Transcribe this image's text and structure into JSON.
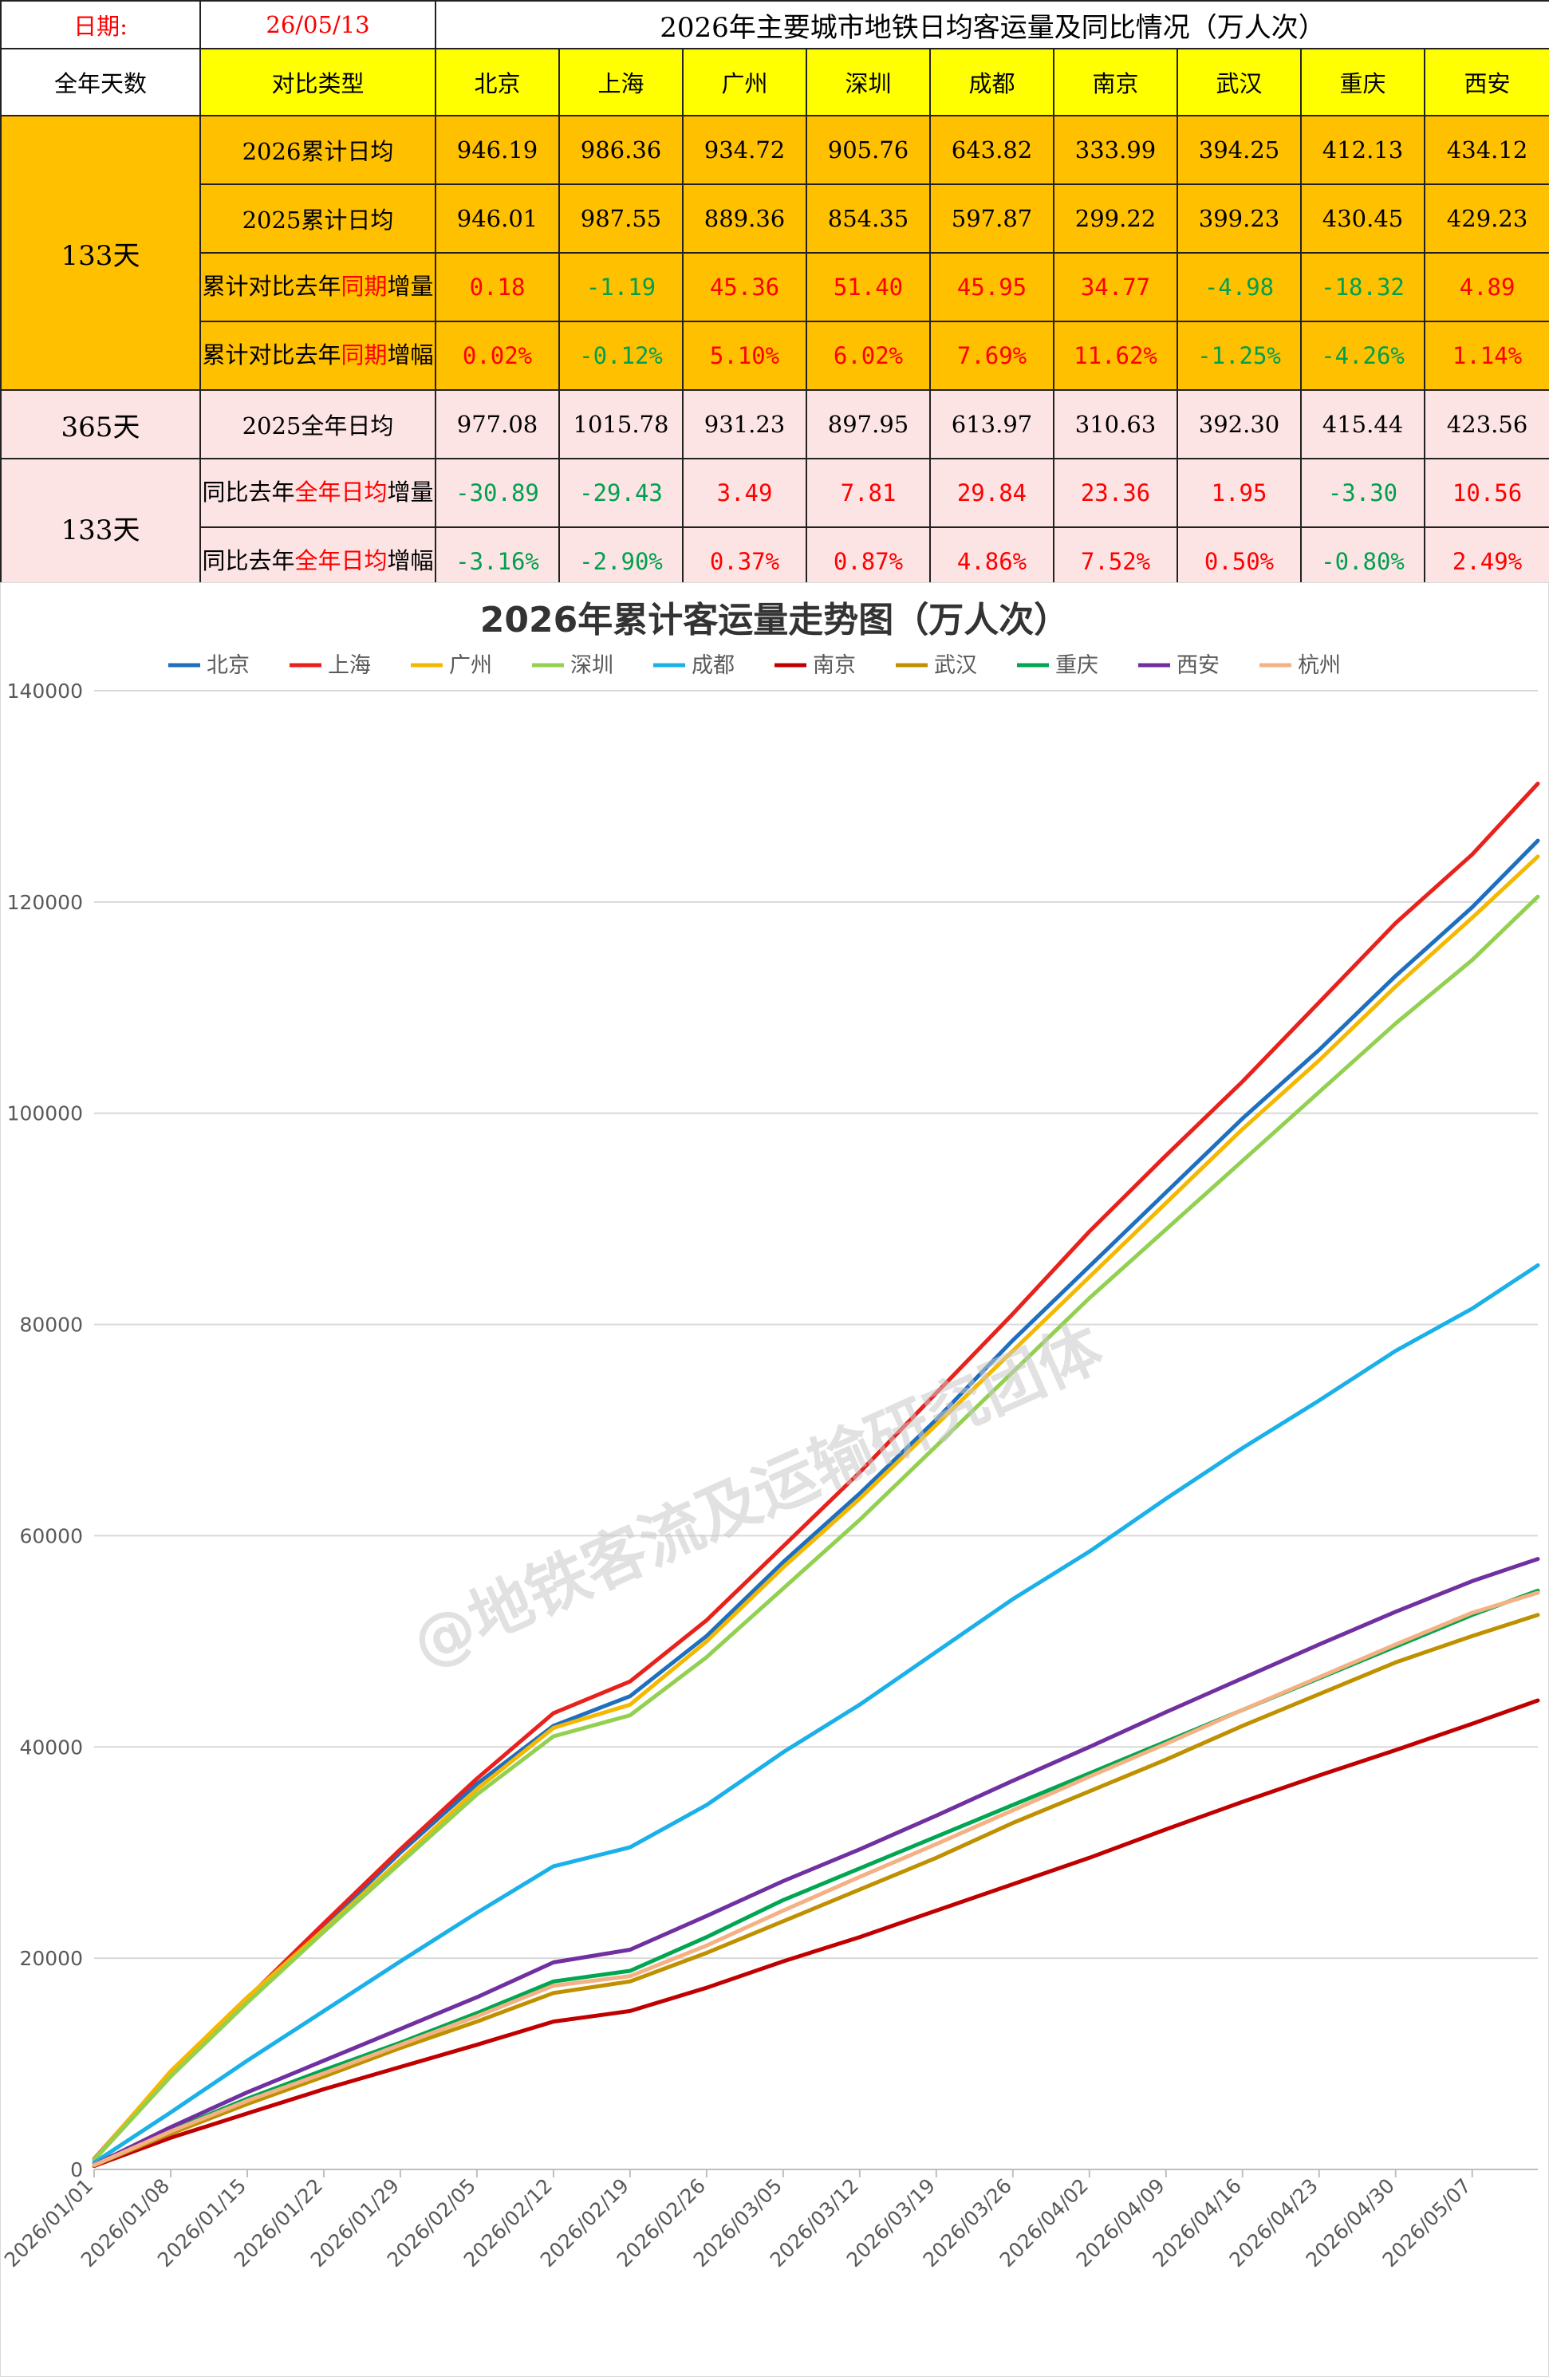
{
  "header": {
    "date_label": "日期:",
    "date_value": "26/05/13",
    "title": "2026年主要城市地铁日均客运量及同比情况（万人次）"
  },
  "columns": {
    "days_label": "全年天数",
    "type_label": "对比类型",
    "cities": [
      "北京",
      "上海",
      "广州",
      "深圳",
      "成都",
      "南京",
      "武汉",
      "重庆",
      "西安"
    ]
  },
  "rows": [
    {
      "days": "133天",
      "label_parts": [
        {
          "t": "2026累计日均",
          "c": "black"
        }
      ],
      "values": [
        "946.19",
        "986.36",
        "934.72",
        "905.76",
        "643.82",
        "333.99",
        "394.25",
        "412.13",
        "434.12"
      ],
      "colors": [
        "black",
        "black",
        "black",
        "black",
        "black",
        "black",
        "black",
        "black",
        "black"
      ]
    },
    {
      "days": "",
      "label_parts": [
        {
          "t": "2025累计日均",
          "c": "black"
        }
      ],
      "values": [
        "946.01",
        "987.55",
        "889.36",
        "854.35",
        "597.87",
        "299.22",
        "399.23",
        "430.45",
        "429.23"
      ],
      "colors": [
        "black",
        "black",
        "black",
        "black",
        "black",
        "black",
        "black",
        "black",
        "black"
      ]
    },
    {
      "days": "",
      "label_parts": [
        {
          "t": "累计对比去年",
          "c": "black"
        },
        {
          "t": "同期",
          "c": "red"
        },
        {
          "t": "增量",
          "c": "black"
        }
      ],
      "values": [
        "0.18",
        "-1.19",
        "45.36",
        "51.40",
        "45.95",
        "34.77",
        "-4.98",
        "-18.32",
        "4.89"
      ],
      "colors": [
        "red",
        "green",
        "red",
        "red",
        "red",
        "red",
        "green",
        "green",
        "red"
      ]
    },
    {
      "days": "",
      "label_parts": [
        {
          "t": "累计对比去年",
          "c": "black"
        },
        {
          "t": "同期",
          "c": "red"
        },
        {
          "t": "增幅",
          "c": "black"
        }
      ],
      "values": [
        "0.02%",
        "-0.12%",
        "5.10%",
        "6.02%",
        "7.69%",
        "11.62%",
        "-1.25%",
        "-4.26%",
        "1.14%"
      ],
      "colors": [
        "red",
        "green",
        "red",
        "red",
        "red",
        "red",
        "green",
        "green",
        "red"
      ]
    },
    {
      "days": "365天",
      "label_parts": [
        {
          "t": "2025全年日均",
          "c": "black"
        }
      ],
      "values": [
        "977.08",
        "1015.78",
        "931.23",
        "897.95",
        "613.97",
        "310.63",
        "392.30",
        "415.44",
        "423.56"
      ],
      "colors": [
        "black",
        "black",
        "black",
        "black",
        "black",
        "black",
        "black",
        "black",
        "black"
      ]
    },
    {
      "days": "133天",
      "label_parts": [
        {
          "t": "同比去年",
          "c": "black"
        },
        {
          "t": "全年日均",
          "c": "red"
        },
        {
          "t": "增量",
          "c": "black"
        }
      ],
      "values": [
        "-30.89",
        "-29.43",
        "3.49",
        "7.81",
        "29.84",
        "23.36",
        "1.95",
        "-3.30",
        "10.56"
      ],
      "colors": [
        "green",
        "green",
        "red",
        "red",
        "red",
        "red",
        "red",
        "green",
        "red"
      ]
    },
    {
      "days": "",
      "label_parts": [
        {
          "t": "同比去年",
          "c": "black"
        },
        {
          "t": "全年日均",
          "c": "red"
        },
        {
          "t": "增幅",
          "c": "black"
        }
      ],
      "values": [
        "-3.16%",
        "-2.90%",
        "0.37%",
        "0.87%",
        "4.86%",
        "7.52%",
        "0.50%",
        "-0.80%",
        "2.49%"
      ],
      "colors": [
        "green",
        "green",
        "red",
        "red",
        "red",
        "red",
        "red",
        "green",
        "red"
      ]
    }
  ],
  "colors": {
    "red_text": "#ff0000",
    "green_text": "#00a050",
    "yellow": "#ffff00",
    "orange": "#ffc000",
    "pink": "#fde4e4"
  },
  "watermark": "@地铁客流及运输研究团体",
  "chart_data": {
    "type": "line",
    "title": "2026年累计客运量走势图（万人次）",
    "xlabel": "",
    "ylabel": "",
    "ylim": [
      0,
      140000
    ],
    "yticks": [
      0,
      20000,
      40000,
      60000,
      80000,
      100000,
      120000,
      140000
    ],
    "x_tick_labels": [
      "2026/01/01",
      "2026/01/08",
      "2026/01/15",
      "2026/01/22",
      "2026/01/29",
      "2026/02/05",
      "2026/02/12",
      "2026/02/19",
      "2026/02/26",
      "2026/03/05",
      "2026/03/12",
      "2026/03/19",
      "2026/03/26",
      "2026/04/02",
      "2026/04/09",
      "2026/04/16",
      "2026/04/23",
      "2026/04/30",
      "2026/05/07"
    ],
    "x_range": [
      "2026/01/01",
      "2026/05/13"
    ],
    "grid": true,
    "legend": "top",
    "series": [
      {
        "name": "北京",
        "color": "#1f6fbf",
        "points": [
          [
            "2026/01/01",
            950
          ],
          [
            "2026/01/08",
            9000
          ],
          [
            "2026/01/15",
            16000
          ],
          [
            "2026/01/22",
            23000
          ],
          [
            "2026/01/29",
            30000
          ],
          [
            "2026/02/05",
            36500
          ],
          [
            "2026/02/12",
            42000
          ],
          [
            "2026/02/19",
            44800
          ],
          [
            "2026/02/26",
            50500
          ],
          [
            "2026/03/05",
            57500
          ],
          [
            "2026/03/12",
            64000
          ],
          [
            "2026/03/19",
            71000
          ],
          [
            "2026/03/26",
            78500
          ],
          [
            "2026/04/02",
            85500
          ],
          [
            "2026/04/09",
            92500
          ],
          [
            "2026/04/16",
            99500
          ],
          [
            "2026/04/23",
            106000
          ],
          [
            "2026/04/30",
            113000
          ],
          [
            "2026/05/07",
            119500
          ],
          [
            "2026/05/13",
            125800
          ]
        ]
      },
      {
        "name": "上海",
        "color": "#e8211c",
        "points": [
          [
            "2026/01/01",
            990
          ],
          [
            "2026/01/08",
            9200
          ],
          [
            "2026/01/15",
            16200
          ],
          [
            "2026/01/22",
            23300
          ],
          [
            "2026/01/29",
            30300
          ],
          [
            "2026/02/05",
            37000
          ],
          [
            "2026/02/12",
            43200
          ],
          [
            "2026/02/19",
            46200
          ],
          [
            "2026/02/26",
            52000
          ],
          [
            "2026/03/05",
            59000
          ],
          [
            "2026/03/12",
            66000
          ],
          [
            "2026/03/19",
            73500
          ],
          [
            "2026/03/26",
            81000
          ],
          [
            "2026/04/02",
            88800
          ],
          [
            "2026/04/09",
            96000
          ],
          [
            "2026/04/16",
            103000
          ],
          [
            "2026/04/23",
            110500
          ],
          [
            "2026/04/30",
            118000
          ],
          [
            "2026/05/07",
            124500
          ],
          [
            "2026/05/13",
            131200
          ]
        ]
      },
      {
        "name": "广州",
        "color": "#f5b800",
        "points": [
          [
            "2026/01/01",
            930
          ],
          [
            "2026/01/08",
            9300
          ],
          [
            "2026/01/15",
            16300
          ],
          [
            "2026/01/22",
            22700
          ],
          [
            "2026/01/29",
            29300
          ],
          [
            "2026/02/05",
            36000
          ],
          [
            "2026/02/12",
            41800
          ],
          [
            "2026/02/19",
            44000
          ],
          [
            "2026/02/26",
            50000
          ],
          [
            "2026/03/05",
            57000
          ],
          [
            "2026/03/12",
            63500
          ],
          [
            "2026/03/19",
            70500
          ],
          [
            "2026/03/26",
            77500
          ],
          [
            "2026/04/02",
            84500
          ],
          [
            "2026/04/09",
            91500
          ],
          [
            "2026/04/16",
            98500
          ],
          [
            "2026/04/23",
            105000
          ],
          [
            "2026/04/30",
            112000
          ],
          [
            "2026/05/07",
            118500
          ],
          [
            "2026/05/13",
            124300
          ]
        ]
      },
      {
        "name": "深圳",
        "color": "#92d050",
        "points": [
          [
            "2026/01/01",
            900
          ],
          [
            "2026/01/08",
            8800
          ],
          [
            "2026/01/15",
            15800
          ],
          [
            "2026/01/22",
            22500
          ],
          [
            "2026/01/29",
            29000
          ],
          [
            "2026/02/05",
            35500
          ],
          [
            "2026/02/12",
            41000
          ],
          [
            "2026/02/19",
            43000
          ],
          [
            "2026/02/26",
            48500
          ],
          [
            "2026/03/05",
            55000
          ],
          [
            "2026/03/12",
            61500
          ],
          [
            "2026/03/19",
            68500
          ],
          [
            "2026/03/26",
            75500
          ],
          [
            "2026/04/02",
            82500
          ],
          [
            "2026/04/09",
            89000
          ],
          [
            "2026/04/16",
            95500
          ],
          [
            "2026/04/23",
            102000
          ],
          [
            "2026/04/30",
            108500
          ],
          [
            "2026/05/07",
            114500
          ],
          [
            "2026/05/13",
            120500
          ]
        ]
      },
      {
        "name": "成都",
        "color": "#1ab0e8",
        "points": [
          [
            "2026/01/01",
            640
          ],
          [
            "2026/01/08",
            5400
          ],
          [
            "2026/01/15",
            10300
          ],
          [
            "2026/01/22",
            15000
          ],
          [
            "2026/01/29",
            19700
          ],
          [
            "2026/02/05",
            24300
          ],
          [
            "2026/02/12",
            28700
          ],
          [
            "2026/02/19",
            30500
          ],
          [
            "2026/02/26",
            34500
          ],
          [
            "2026/03/05",
            39500
          ],
          [
            "2026/03/12",
            44000
          ],
          [
            "2026/03/19",
            49000
          ],
          [
            "2026/03/26",
            54000
          ],
          [
            "2026/04/02",
            58500
          ],
          [
            "2026/04/09",
            63500
          ],
          [
            "2026/04/16",
            68300
          ],
          [
            "2026/04/23",
            72800
          ],
          [
            "2026/04/30",
            77500
          ],
          [
            "2026/05/07",
            81500
          ],
          [
            "2026/05/13",
            85600
          ]
        ]
      },
      {
        "name": "南京",
        "color": "#c00000",
        "points": [
          [
            "2026/01/01",
            330
          ],
          [
            "2026/01/08",
            3000
          ],
          [
            "2026/01/15",
            5300
          ],
          [
            "2026/01/22",
            7600
          ],
          [
            "2026/01/29",
            9700
          ],
          [
            "2026/02/05",
            11800
          ],
          [
            "2026/02/12",
            14000
          ],
          [
            "2026/02/19",
            15000
          ],
          [
            "2026/02/26",
            17200
          ],
          [
            "2026/03/05",
            19700
          ],
          [
            "2026/03/12",
            22000
          ],
          [
            "2026/03/19",
            24500
          ],
          [
            "2026/03/26",
            27000
          ],
          [
            "2026/04/02",
            29500
          ],
          [
            "2026/04/09",
            32200
          ],
          [
            "2026/04/16",
            34800
          ],
          [
            "2026/04/23",
            37300
          ],
          [
            "2026/04/30",
            39700
          ],
          [
            "2026/05/07",
            42200
          ],
          [
            "2026/05/13",
            44400
          ]
        ]
      },
      {
        "name": "武汉",
        "color": "#bf9000",
        "points": [
          [
            "2026/01/01",
            390
          ],
          [
            "2026/01/08",
            3400
          ],
          [
            "2026/01/15",
            6200
          ],
          [
            "2026/01/22",
            8800
          ],
          [
            "2026/01/29",
            11500
          ],
          [
            "2026/02/05",
            14000
          ],
          [
            "2026/02/12",
            16700
          ],
          [
            "2026/02/19",
            17800
          ],
          [
            "2026/02/26",
            20500
          ],
          [
            "2026/03/05",
            23500
          ],
          [
            "2026/03/12",
            26500
          ],
          [
            "2026/03/19",
            29500
          ],
          [
            "2026/03/26",
            32800
          ],
          [
            "2026/04/02",
            35800
          ],
          [
            "2026/04/09",
            38800
          ],
          [
            "2026/04/16",
            42000
          ],
          [
            "2026/04/23",
            45000
          ],
          [
            "2026/04/30",
            48000
          ],
          [
            "2026/05/07",
            50500
          ],
          [
            "2026/05/13",
            52500
          ]
        ]
      },
      {
        "name": "重庆",
        "color": "#00a651",
        "points": [
          [
            "2026/01/01",
            410
          ],
          [
            "2026/01/08",
            3700
          ],
          [
            "2026/01/15",
            6700
          ],
          [
            "2026/01/22",
            9400
          ],
          [
            "2026/01/29",
            12000
          ],
          [
            "2026/02/05",
            14800
          ],
          [
            "2026/02/12",
            17800
          ],
          [
            "2026/02/19",
            18800
          ],
          [
            "2026/02/26",
            22000
          ],
          [
            "2026/03/05",
            25500
          ],
          [
            "2026/03/12",
            28500
          ],
          [
            "2026/03/19",
            31500
          ],
          [
            "2026/03/26",
            34500
          ],
          [
            "2026/04/02",
            37500
          ],
          [
            "2026/04/09",
            40500
          ],
          [
            "2026/04/16",
            43500
          ],
          [
            "2026/04/23",
            46500
          ],
          [
            "2026/04/30",
            49500
          ],
          [
            "2026/05/07",
            52500
          ],
          [
            "2026/05/13",
            54800
          ]
        ]
      },
      {
        "name": "西安",
        "color": "#7030a0",
        "points": [
          [
            "2026/01/01",
            430
          ],
          [
            "2026/01/08",
            4000
          ],
          [
            "2026/01/15",
            7300
          ],
          [
            "2026/01/22",
            10300
          ],
          [
            "2026/01/29",
            13300
          ],
          [
            "2026/02/05",
            16300
          ],
          [
            "2026/02/12",
            19600
          ],
          [
            "2026/02/19",
            20800
          ],
          [
            "2026/02/26",
            24000
          ],
          [
            "2026/03/05",
            27300
          ],
          [
            "2026/03/12",
            30300
          ],
          [
            "2026/03/19",
            33500
          ],
          [
            "2026/03/26",
            36800
          ],
          [
            "2026/04/02",
            40000
          ],
          [
            "2026/04/09",
            43300
          ],
          [
            "2026/04/16",
            46500
          ],
          [
            "2026/04/23",
            49700
          ],
          [
            "2026/04/30",
            52800
          ],
          [
            "2026/05/07",
            55700
          ],
          [
            "2026/05/13",
            57800
          ]
        ]
      },
      {
        "name": "杭州",
        "color": "#f4b183",
        "points": [
          [
            "2026/01/01",
            410
          ],
          [
            "2026/01/08",
            3600
          ],
          [
            "2026/01/15",
            6500
          ],
          [
            "2026/01/22",
            9100
          ],
          [
            "2026/01/29",
            11800
          ],
          [
            "2026/02/05",
            14500
          ],
          [
            "2026/02/12",
            17400
          ],
          [
            "2026/02/19",
            18300
          ],
          [
            "2026/02/26",
            21200
          ],
          [
            "2026/03/05",
            24500
          ],
          [
            "2026/03/12",
            27700
          ],
          [
            "2026/03/19",
            30800
          ],
          [
            "2026/03/26",
            34000
          ],
          [
            "2026/04/02",
            37200
          ],
          [
            "2026/04/09",
            40300
          ],
          [
            "2026/04/16",
            43500
          ],
          [
            "2026/04/23",
            46600
          ],
          [
            "2026/04/30",
            49700
          ],
          [
            "2026/05/07",
            52700
          ],
          [
            "2026/05/13",
            54600
          ]
        ]
      }
    ]
  }
}
